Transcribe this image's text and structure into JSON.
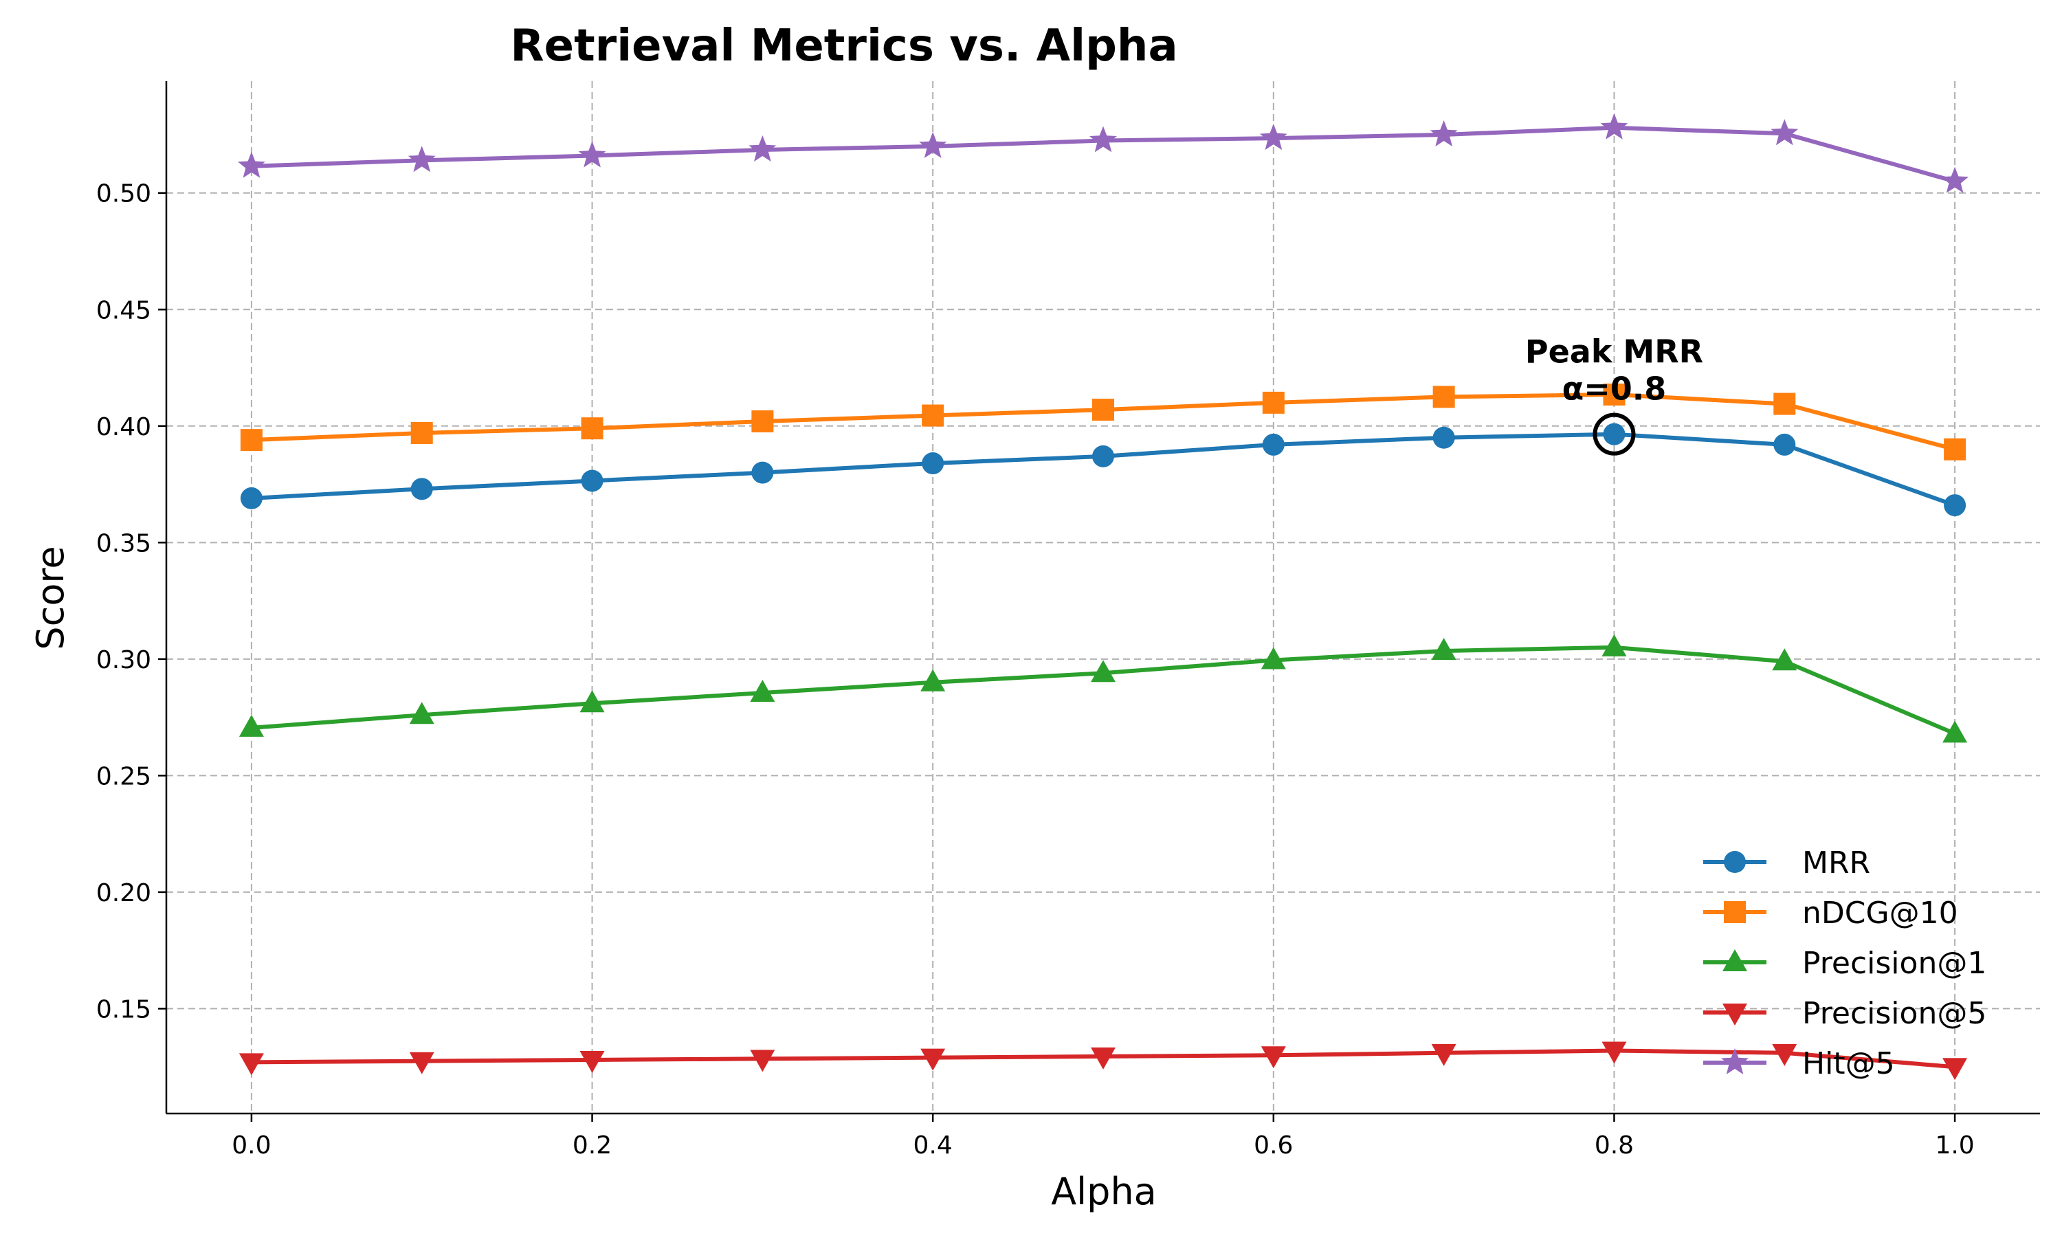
{
  "chart_data": {
    "type": "line",
    "title": "Retrieval Metrics vs. Alpha",
    "xlabel": "Alpha",
    "ylabel": "Score",
    "x": [
      0.0,
      0.1,
      0.2,
      0.3,
      0.4,
      0.5,
      0.6,
      0.7,
      0.8,
      0.9,
      1.0
    ],
    "xlim": [
      -0.05,
      1.05
    ],
    "ylim": [
      0.105,
      0.548
    ],
    "xticks": [
      0.0,
      0.2,
      0.4,
      0.6,
      0.8,
      1.0
    ],
    "xtick_labels": [
      "0.0",
      "0.2",
      "0.4",
      "0.6",
      "0.8",
      "1.0"
    ],
    "yticks": [
      0.15,
      0.2,
      0.25,
      0.3,
      0.35,
      0.4,
      0.45,
      0.5
    ],
    "ytick_labels": [
      "0.15",
      "0.20",
      "0.25",
      "0.30",
      "0.35",
      "0.40",
      "0.45",
      "0.50"
    ],
    "grid": true,
    "legend_position": "bottom-right",
    "series": [
      {
        "name": "MRR",
        "color": "#1f77b4",
        "marker": "circle",
        "values": [
          0.369,
          0.373,
          0.3765,
          0.38,
          0.384,
          0.387,
          0.392,
          0.395,
          0.3965,
          0.392,
          0.366
        ]
      },
      {
        "name": "nDCG@10",
        "color": "#ff7f0e",
        "marker": "square",
        "values": [
          0.394,
          0.397,
          0.399,
          0.402,
          0.4045,
          0.407,
          0.41,
          0.4125,
          0.4135,
          0.4095,
          0.39
        ]
      },
      {
        "name": "Precision@1",
        "color": "#2ca02c",
        "marker": "triangle-up",
        "values": [
          0.2705,
          0.276,
          0.281,
          0.2855,
          0.29,
          0.294,
          0.2995,
          0.3035,
          0.305,
          0.299,
          0.268
        ]
      },
      {
        "name": "Precision@5",
        "color": "#d62728",
        "marker": "triangle-down",
        "values": [
          0.127,
          0.1275,
          0.128,
          0.1285,
          0.129,
          0.1295,
          0.13,
          0.131,
          0.132,
          0.131,
          0.125
        ]
      },
      {
        "name": "Hit@5",
        "color": "#9467bd",
        "marker": "star",
        "values": [
          0.5115,
          0.514,
          0.516,
          0.5185,
          0.52,
          0.5225,
          0.5235,
          0.525,
          0.528,
          0.5255,
          0.505
        ]
      }
    ],
    "annotations": [
      {
        "text_line1": "Peak MRR",
        "text_line2": "α=0.8",
        "x": 0.8,
        "y": 0.3965,
        "series": "MRR"
      }
    ]
  }
}
